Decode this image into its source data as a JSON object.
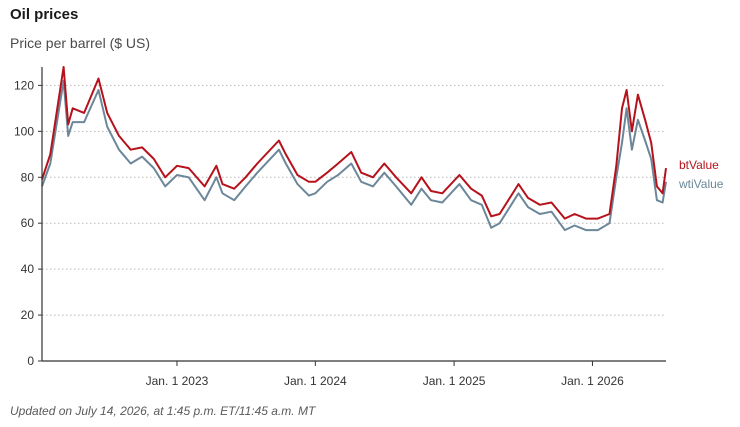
{
  "header": {
    "title": "Oil prices",
    "subtitle": "Price per barrel ($ US)"
  },
  "footer": {
    "note": "Updated on July 14, 2026, at 1:45 p.m. ET/11:45 a.m. MT"
  },
  "colors": {
    "btValue": "#b5121b",
    "wtiValue": "#6b8799",
    "grid": "#b8b8b8",
    "axis": "#333333"
  },
  "chart_data": {
    "type": "line",
    "title": "Oil prices",
    "ylabel": "Price per barrel ($ US)",
    "xlabel": "",
    "ylim": [
      0,
      128
    ],
    "yticks": [
      0,
      20,
      40,
      60,
      80,
      100,
      120
    ],
    "xlim": [
      "2022-01-10",
      "2026-07-14"
    ],
    "xticks": [
      {
        "date": "2023-01-01",
        "label": "Jan. 1 2023"
      },
      {
        "date": "2024-01-01",
        "label": "Jan. 1 2024"
      },
      {
        "date": "2025-01-01",
        "label": "Jan. 1 2025"
      },
      {
        "date": "2026-01-01",
        "label": "Jan. 1 2026"
      }
    ],
    "grid": "horizontal dotted",
    "legend": "right end of lines",
    "x": [
      "2022-01-10",
      "2022-02-01",
      "2022-03-08",
      "2022-03-20",
      "2022-04-01",
      "2022-05-01",
      "2022-06-08",
      "2022-07-01",
      "2022-08-01",
      "2022-09-01",
      "2022-10-01",
      "2022-11-01",
      "2022-12-01",
      "2023-01-01",
      "2023-02-01",
      "2023-03-15",
      "2023-04-15",
      "2023-05-01",
      "2023-06-01",
      "2023-07-01",
      "2023-08-01",
      "2023-09-27",
      "2023-10-15",
      "2023-11-15",
      "2023-12-15",
      "2024-01-01",
      "2024-02-01",
      "2024-03-01",
      "2024-04-05",
      "2024-05-01",
      "2024-06-01",
      "2024-07-01",
      "2024-08-01",
      "2024-09-10",
      "2024-10-07",
      "2024-11-01",
      "2024-12-01",
      "2025-01-15",
      "2025-02-15",
      "2025-03-15",
      "2025-04-09",
      "2025-05-01",
      "2025-06-20",
      "2025-07-15",
      "2025-08-15",
      "2025-09-15",
      "2025-10-20",
      "2025-11-15",
      "2025-12-15",
      "2026-01-15",
      "2026-02-15",
      "2026-03-05",
      "2026-03-20",
      "2026-04-01",
      "2026-04-15",
      "2026-05-01",
      "2026-05-20",
      "2026-06-05",
      "2026-06-20",
      "2026-07-05",
      "2026-07-14"
    ],
    "series": [
      {
        "name": "btValue",
        "values": [
          79,
          90,
          128,
          103,
          110,
          108,
          123,
          108,
          98,
          92,
          93,
          88,
          80,
          85,
          84,
          76,
          85,
          77,
          75,
          80,
          86,
          96,
          90,
          81,
          78,
          78,
          82,
          86,
          91,
          82,
          80,
          86,
          80,
          73,
          80,
          74,
          73,
          81,
          75,
          72,
          63,
          64,
          77,
          71,
          68,
          69,
          62,
          64,
          62,
          62,
          64,
          85,
          110,
          118,
          100,
          116,
          105,
          95,
          76,
          73,
          84
        ]
      },
      {
        "name": "wtiValue",
        "values": [
          76,
          86,
          122,
          98,
          104,
          104,
          118,
          102,
          92,
          86,
          89,
          84,
          76,
          81,
          80,
          70,
          80,
          73,
          70,
          76,
          82,
          92,
          86,
          77,
          72,
          73,
          78,
          81,
          86,
          78,
          76,
          82,
          76,
          68,
          75,
          70,
          69,
          77,
          70,
          68,
          58,
          60,
          73,
          67,
          64,
          65,
          57,
          59,
          57,
          57,
          60,
          80,
          95,
          110,
          92,
          105,
          96,
          88,
          70,
          69,
          78
        ]
      }
    ]
  }
}
